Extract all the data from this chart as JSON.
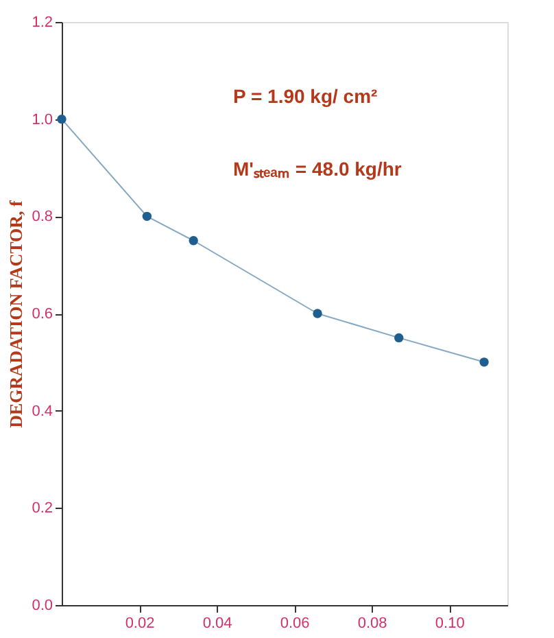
{
  "chart_data": {
    "type": "line",
    "ylabel": "DEGRADATION FACTOR, f",
    "x": [
      0,
      0.022,
      0.034,
      0.066,
      0.087,
      0.109
    ],
    "series": [
      {
        "color": "#1f5f8f",
        "values": [
          1.0,
          0.8,
          0.75,
          0.6,
          0.55,
          0.5
        ]
      }
    ],
    "xlim": [
      0,
      0.115
    ],
    "xticks": [
      0.02,
      0.04,
      0.06,
      0.08,
      {
        "value": 0.1,
        "label": "0.10"
      }
    ],
    "ylim": [
      0,
      1.2
    ],
    "yticks": [
      {
        "value": 0,
        "label": "0.0"
      },
      0.2,
      0.4,
      0.6,
      0.8,
      {
        "value": 1.0,
        "label": "1.0"
      },
      {
        "value": 1.2,
        "label": "1.2"
      }
    ],
    "annotations": [
      "P      = 1.90 kg/ cm²",
      "M'ₛₜₑₐₘ = 48.0 kg/hr"
    ],
    "marker": "circle",
    "line_style": "solid",
    "grid": false
  }
}
